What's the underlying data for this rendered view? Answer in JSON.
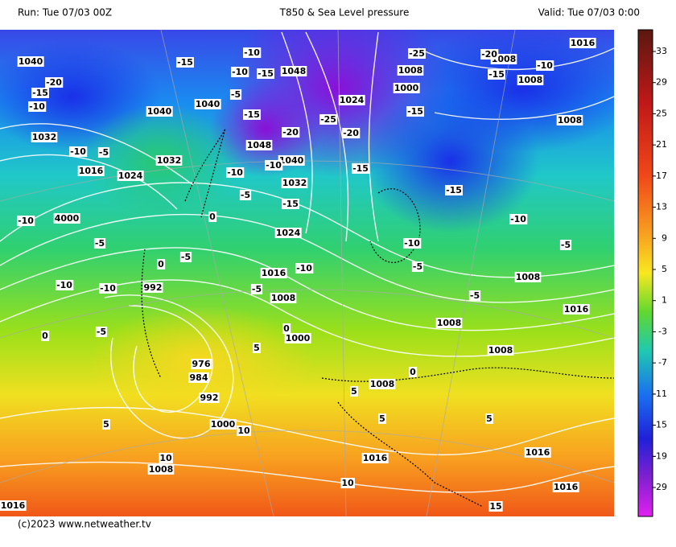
{
  "header": {
    "run": "Run: Tue 07/03 00Z",
    "title": "T850 & Sea Level pressure",
    "valid": "Valid: Tue 07/03 0:00"
  },
  "footer": "(c)2023 www.netweather.tv",
  "colorbar": {
    "ticks": [
      33,
      29,
      25,
      21,
      17,
      13,
      9,
      5,
      1,
      -3,
      -7,
      -11,
      -15,
      -19,
      -29
    ]
  },
  "isobar_labels": [
    1040,
    1032,
    1016,
    1024,
    1040,
    1040,
    1032,
    1048,
    1024,
    1048,
    1040,
    1032,
    1024,
    1016,
    1008,
    1000,
    4000,
    992,
    976,
    984,
    992,
    1000,
    1008,
    1016,
    1016,
    1008,
    1008,
    1008,
    1008,
    1016,
    1016,
    1016,
    1008,
    1008,
    1016,
    1008,
    1008,
    1000
  ],
  "isotherm_labels": [
    -20,
    -15,
    -10,
    -10,
    -5,
    -15,
    -10,
    -10,
    -15,
    -5,
    -15,
    -20,
    -25,
    -20,
    -10,
    -5,
    -15,
    -15,
    -10,
    -25,
    -20,
    -15,
    -10,
    -15,
    -15,
    -10,
    -5,
    -10,
    -5,
    -5,
    -10,
    -5,
    -5,
    -5,
    -10,
    -10,
    -10,
    -5,
    0,
    0,
    0,
    0,
    0,
    5,
    5,
    5,
    5,
    5,
    10,
    10,
    10,
    15
  ]
}
